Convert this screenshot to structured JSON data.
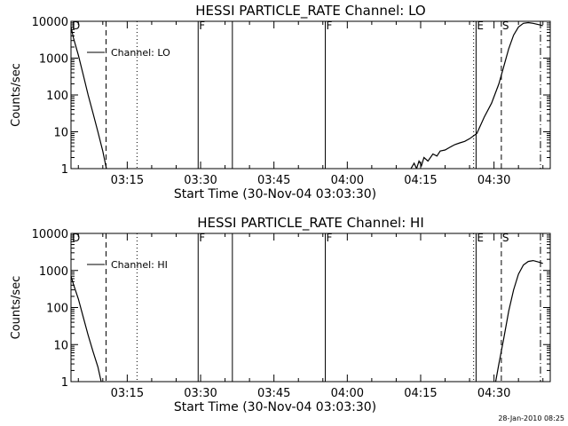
{
  "timestamp": "28-Jan-2010 08:25",
  "chart_data": [
    {
      "type": "line",
      "title": "HESSI PARTICLE_RATE Channel: LO",
      "xlabel": "Start Time (30-Nov-04 03:03:30)",
      "ylabel": "Counts/sec",
      "yscale": "log",
      "xlim": [
        "03:03:30",
        "04:41:30"
      ],
      "ylim": [
        1,
        10000
      ],
      "grid": false,
      "legend": "top-left",
      "xticks": [
        "03:15",
        "03:30",
        "03:45",
        "04:00",
        "04:15",
        "04:30"
      ],
      "yticks": [
        "1",
        "10",
        "100",
        "1000",
        "10000"
      ],
      "series": [
        {
          "name": "Channel: LO",
          "points": [
            [
              "03:03:30",
              7000
            ],
            [
              "03:04:00",
              3500
            ],
            [
              "03:05:00",
              1200
            ],
            [
              "03:06:00",
              350
            ],
            [
              "03:07:00",
              100
            ],
            [
              "03:08:00",
              32
            ],
            [
              "03:09:00",
              10
            ],
            [
              "03:10:00",
              3
            ],
            [
              "03:10:45",
              1
            ],
            [
              "04:13:00",
              1
            ],
            [
              "04:13:40",
              1.4
            ],
            [
              "04:14:10",
              1
            ],
            [
              "04:14:40",
              1.6
            ],
            [
              "04:15:10",
              1.2
            ],
            [
              "04:15:40",
              2
            ],
            [
              "04:16:30",
              1.6
            ],
            [
              "04:17:30",
              2.5
            ],
            [
              "04:18:20",
              2.2
            ],
            [
              "04:19:00",
              3
            ],
            [
              "04:20:00",
              3.2
            ],
            [
              "04:21:00",
              3.8
            ],
            [
              "04:22:00",
              4.5
            ],
            [
              "04:23:00",
              5
            ],
            [
              "04:24:00",
              5.5
            ],
            [
              "04:25:00",
              6.5
            ],
            [
              "04:26:30",
              9
            ],
            [
              "04:28:00",
              25
            ],
            [
              "04:29:30",
              60
            ],
            [
              "04:31:00",
              200
            ],
            [
              "04:32:00",
              600
            ],
            [
              "04:33:00",
              1800
            ],
            [
              "04:34:00",
              4200
            ],
            [
              "04:35:00",
              7000
            ],
            [
              "04:36:00",
              8800
            ],
            [
              "04:37:00",
              9200
            ],
            [
              "04:38:00",
              8800
            ],
            [
              "04:39:00",
              8200
            ],
            [
              "04:40:00",
              7600
            ]
          ]
        }
      ],
      "markers": [
        {
          "time": "03:03:30",
          "style": "solid",
          "label": "D"
        },
        {
          "time": "03:10:40",
          "style": "dashed",
          "label": ""
        },
        {
          "time": "03:17:00",
          "style": "dotted",
          "label": ""
        },
        {
          "time": "03:29:30",
          "style": "solid",
          "label": "F"
        },
        {
          "time": "03:36:30",
          "style": "solid",
          "label": ""
        },
        {
          "time": "03:55:30",
          "style": "solid",
          "label": "F"
        },
        {
          "time": "04:25:50",
          "style": "dotted",
          "label": ""
        },
        {
          "time": "04:26:20",
          "style": "solid",
          "label": "E"
        },
        {
          "time": "04:31:30",
          "style": "dashed",
          "label": "S"
        },
        {
          "time": "04:39:30",
          "style": "dashdot",
          "label": ""
        }
      ]
    },
    {
      "type": "line",
      "title": "HESSI PARTICLE_RATE Channel: HI",
      "xlabel": "Start Time (30-Nov-04 03:03:30)",
      "ylabel": "Counts/sec",
      "yscale": "log",
      "xlim": [
        "03:03:30",
        "04:41:30"
      ],
      "ylim": [
        1,
        10000
      ],
      "grid": false,
      "legend": "top-left",
      "xticks": [
        "03:15",
        "03:30",
        "03:45",
        "04:00",
        "04:15",
        "04:30"
      ],
      "yticks": [
        "1",
        "10",
        "100",
        "1000",
        "10000"
      ],
      "series": [
        {
          "name": "Channel: HI",
          "points": [
            [
              "03:03:30",
              700
            ],
            [
              "03:04:00",
              420
            ],
            [
              "03:05:00",
              170
            ],
            [
              "03:06:00",
              55
            ],
            [
              "03:07:00",
              18
            ],
            [
              "03:08:00",
              6.5
            ],
            [
              "03:09:00",
              2.5
            ],
            [
              "03:09:40",
              1
            ],
            [
              "04:30:20",
              1
            ],
            [
              "04:31:00",
              3
            ],
            [
              "04:32:00",
              15
            ],
            [
              "04:33:00",
              80
            ],
            [
              "04:34:00",
              300
            ],
            [
              "04:35:00",
              800
            ],
            [
              "04:36:00",
              1400
            ],
            [
              "04:37:00",
              1750
            ],
            [
              "04:38:00",
              1850
            ],
            [
              "04:39:00",
              1700
            ],
            [
              "04:40:00",
              1550
            ]
          ]
        }
      ],
      "markers": [
        {
          "time": "03:03:30",
          "style": "solid",
          "label": "D"
        },
        {
          "time": "03:10:40",
          "style": "dashed",
          "label": ""
        },
        {
          "time": "03:17:00",
          "style": "dotted",
          "label": ""
        },
        {
          "time": "03:29:30",
          "style": "solid",
          "label": "F"
        },
        {
          "time": "03:36:30",
          "style": "solid",
          "label": ""
        },
        {
          "time": "03:55:30",
          "style": "solid",
          "label": "F"
        },
        {
          "time": "04:25:50",
          "style": "dotted",
          "label": ""
        },
        {
          "time": "04:26:20",
          "style": "solid",
          "label": "E"
        },
        {
          "time": "04:31:30",
          "style": "dashed",
          "label": "S"
        },
        {
          "time": "04:39:30",
          "style": "dashdot",
          "label": ""
        }
      ]
    }
  ]
}
